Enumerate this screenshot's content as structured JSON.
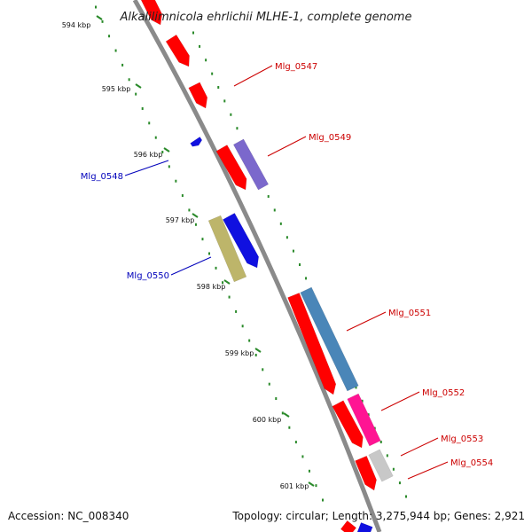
{
  "title": "Alkalilimnicola ehrlichii MLHE-1, complete genome",
  "footer": {
    "accession": "Accession: NC_008340",
    "summary": "Topology: circular; Length: 3,275,944 bp; Genes: 2,921"
  },
  "colors": {
    "backbone": "#8a8a8a",
    "scale_dots": "#2a8a2a",
    "forward_label": "#cc0000",
    "reverse_label": "#0000bb"
  },
  "kbp_ticks": [
    "594 kbp",
    "595 kbp",
    "596 kbp",
    "597 kbp",
    "598 kbp",
    "599 kbp",
    "600 kbp",
    "601 kbp"
  ],
  "gene_labels": [
    {
      "id": "Mlg_0547",
      "text": "Mlg_0547",
      "strand": "forward"
    },
    {
      "id": "Mlg_0549",
      "text": "Mlg_0549",
      "strand": "forward"
    },
    {
      "id": "Mlg_0548",
      "text": "Mlg_0548",
      "strand": "reverse"
    },
    {
      "id": "Mlg_0550",
      "text": "Mlg_0550",
      "strand": "reverse"
    },
    {
      "id": "Mlg_0551",
      "text": "Mlg_0551",
      "strand": "forward"
    },
    {
      "id": "Mlg_0552",
      "text": "Mlg_0552",
      "strand": "forward"
    },
    {
      "id": "Mlg_0553",
      "text": "Mlg_0553",
      "strand": "forward"
    },
    {
      "id": "Mlg_0554",
      "text": "Mlg_0554",
      "strand": "forward"
    }
  ],
  "features": [
    {
      "name": "cds-forward-1",
      "color": "#ff0000"
    },
    {
      "name": "cds-forward-2",
      "color": "#ff0000"
    },
    {
      "name": "cds-forward-3",
      "color": "#ff0000"
    },
    {
      "name": "gene-mlg-0549-cds",
      "color": "#ff0000"
    },
    {
      "name": "gene-mlg-0549",
      "color": "#7b68cc"
    },
    {
      "name": "gene-mlg-0548",
      "color": "#1010e0"
    },
    {
      "name": "gene-mlg-0550-cds",
      "color": "#1010e0"
    },
    {
      "name": "gene-mlg-0550",
      "color": "#bdb56a"
    },
    {
      "name": "gene-mlg-0551-cds",
      "color": "#ff0000"
    },
    {
      "name": "gene-mlg-0551",
      "color": "#4a86b8"
    },
    {
      "name": "gene-mlg-0552-cds",
      "color": "#ff0000"
    },
    {
      "name": "gene-mlg-0552",
      "color": "#ff1493"
    },
    {
      "name": "gene-mlg-0553-cds",
      "color": "#ff0000"
    },
    {
      "name": "gene-mlg-0553",
      "color": "#c8c8c8"
    },
    {
      "name": "cds-next",
      "color": "#ff0000"
    },
    {
      "name": "cds-next-reverse",
      "color": "#1010e0"
    }
  ]
}
